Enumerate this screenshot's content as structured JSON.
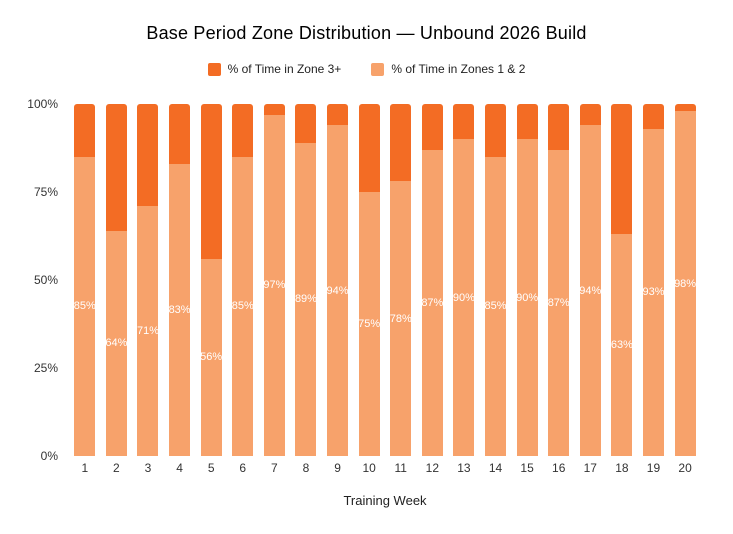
{
  "chart_data": {
    "type": "bar",
    "stacked": true,
    "percent_stacked": true,
    "title": "Base Period Zone Distribution — Unbound 2026 Build",
    "xlabel": "Training Week",
    "ylabel": "",
    "ylim": [
      0,
      100
    ],
    "grid": false,
    "legend_position": "top",
    "categories": [
      "1",
      "2",
      "3",
      "4",
      "5",
      "6",
      "7",
      "8",
      "9",
      "10",
      "11",
      "12",
      "13",
      "14",
      "15",
      "16",
      "17",
      "18",
      "19",
      "20"
    ],
    "series": [
      {
        "name": "% of Time in Zone 3+",
        "color": "#F36C24",
        "values": [
          15,
          36,
          29,
          17,
          44,
          15,
          3,
          11,
          6,
          25,
          22,
          13,
          10,
          15,
          10,
          13,
          6,
          37,
          7,
          2
        ]
      },
      {
        "name": "% of Time in Zones 1 & 2",
        "color": "#F7A26B",
        "values": [
          85,
          64,
          71,
          83,
          56,
          85,
          97,
          89,
          94,
          75,
          78,
          87,
          90,
          85,
          90,
          87,
          94,
          63,
          93,
          98
        ]
      }
    ],
    "bar_labels": [
      "85%",
      "64%",
      "71%",
      "83%",
      "56%",
      "85%",
      "97%",
      "89%",
      "94%",
      "75%",
      "78%",
      "87%",
      "90%",
      "85%",
      "90%",
      "87%",
      "94%",
      "63%",
      "93%",
      "98%"
    ],
    "bar_label_series": "% of Time in Zones 1 & 2",
    "bar_label_color": "#ffffff",
    "y_ticks": [
      "0%",
      "25%",
      "50%",
      "75%",
      "100%"
    ]
  }
}
